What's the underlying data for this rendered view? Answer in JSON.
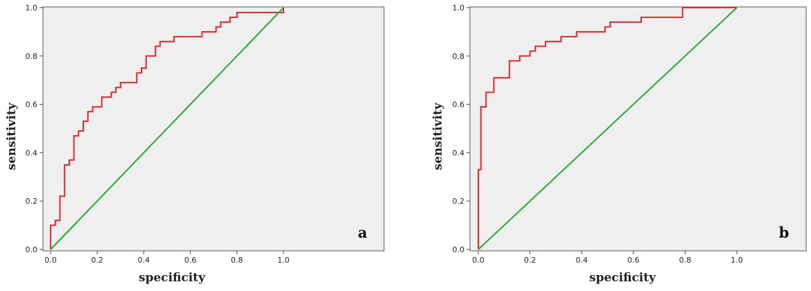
{
  "chart_data": [
    {
      "type": "line",
      "panel_label": "a",
      "xlabel": "specificity",
      "ylabel": "sensitivity",
      "xlim": [
        0,
        1.0
      ],
      "ylim": [
        0,
        1.0
      ],
      "x_ticks": [
        "0.0",
        "0.2",
        "0.4",
        "0.6",
        "0.8",
        "1.0"
      ],
      "y_ticks": [
        "0.0",
        "0.2",
        "0.4",
        "0.6",
        "0.8",
        "1.0"
      ],
      "grid": false,
      "background": "#efefef",
      "series": [
        {
          "color": "#e8262c",
          "x": [
            0.0,
            0.0,
            0.02,
            0.02,
            0.04,
            0.04,
            0.06,
            0.06,
            0.08,
            0.08,
            0.1,
            0.1,
            0.12,
            0.12,
            0.14,
            0.14,
            0.16,
            0.16,
            0.18,
            0.18,
            0.22,
            0.22,
            0.26,
            0.26,
            0.28,
            0.28,
            0.3,
            0.3,
            0.37,
            0.37,
            0.39,
            0.39,
            0.41,
            0.41,
            0.45,
            0.45,
            0.47,
            0.47,
            0.53,
            0.53,
            0.65,
            0.65,
            0.71,
            0.71,
            0.73,
            0.73,
            0.77,
            0.77,
            0.8,
            0.8,
            1.0,
            1.0
          ],
          "y": [
            0.0,
            0.1,
            0.1,
            0.12,
            0.12,
            0.22,
            0.22,
            0.35,
            0.35,
            0.37,
            0.37,
            0.47,
            0.47,
            0.49,
            0.49,
            0.53,
            0.53,
            0.57,
            0.57,
            0.59,
            0.59,
            0.63,
            0.63,
            0.65,
            0.65,
            0.67,
            0.67,
            0.69,
            0.69,
            0.73,
            0.73,
            0.75,
            0.75,
            0.8,
            0.8,
            0.84,
            0.84,
            0.86,
            0.86,
            0.88,
            0.88,
            0.9,
            0.9,
            0.92,
            0.92,
            0.94,
            0.94,
            0.96,
            0.96,
            0.98,
            0.98,
            1.0
          ]
        },
        {
          "color": "#22aa33",
          "x": [
            0.0,
            1.0
          ],
          "y": [
            0.0,
            1.0
          ]
        }
      ]
    },
    {
      "type": "line",
      "panel_label": "b",
      "xlabel": "specificity",
      "ylabel": "sensitivity",
      "xlim": [
        0,
        1.0
      ],
      "ylim": [
        0,
        1.0
      ],
      "x_ticks": [
        "0.0",
        "0.2",
        "0.4",
        "0.6",
        "0.8",
        "1.0"
      ],
      "y_ticks": [
        "0.0",
        "0.2",
        "0.4",
        "0.6",
        "0.8",
        "1.0"
      ],
      "grid": false,
      "background": "#efefef",
      "series": [
        {
          "color": "#e8262c",
          "x": [
            0.0,
            0.0,
            0.01,
            0.01,
            0.03,
            0.03,
            0.06,
            0.06,
            0.12,
            0.12,
            0.16,
            0.16,
            0.2,
            0.2,
            0.22,
            0.22,
            0.26,
            0.26,
            0.32,
            0.32,
            0.35,
            0.35,
            0.38,
            0.38,
            0.49,
            0.49,
            0.51,
            0.51,
            0.63,
            0.63,
            0.79,
            0.79,
            0.98,
            0.98,
            1.0
          ],
          "y": [
            0.0,
            0.33,
            0.33,
            0.59,
            0.59,
            0.65,
            0.65,
            0.71,
            0.71,
            0.78,
            0.78,
            0.8,
            0.8,
            0.82,
            0.82,
            0.84,
            0.84,
            0.86,
            0.86,
            0.88,
            0.88,
            0.88,
            0.88,
            0.9,
            0.9,
            0.92,
            0.92,
            0.94,
            0.94,
            0.96,
            0.96,
            1.0,
            1.0,
            1.0,
            1.0
          ]
        },
        {
          "color": "#22aa33",
          "x": [
            0.0,
            1.0
          ],
          "y": [
            0.0,
            1.0
          ]
        }
      ]
    }
  ]
}
